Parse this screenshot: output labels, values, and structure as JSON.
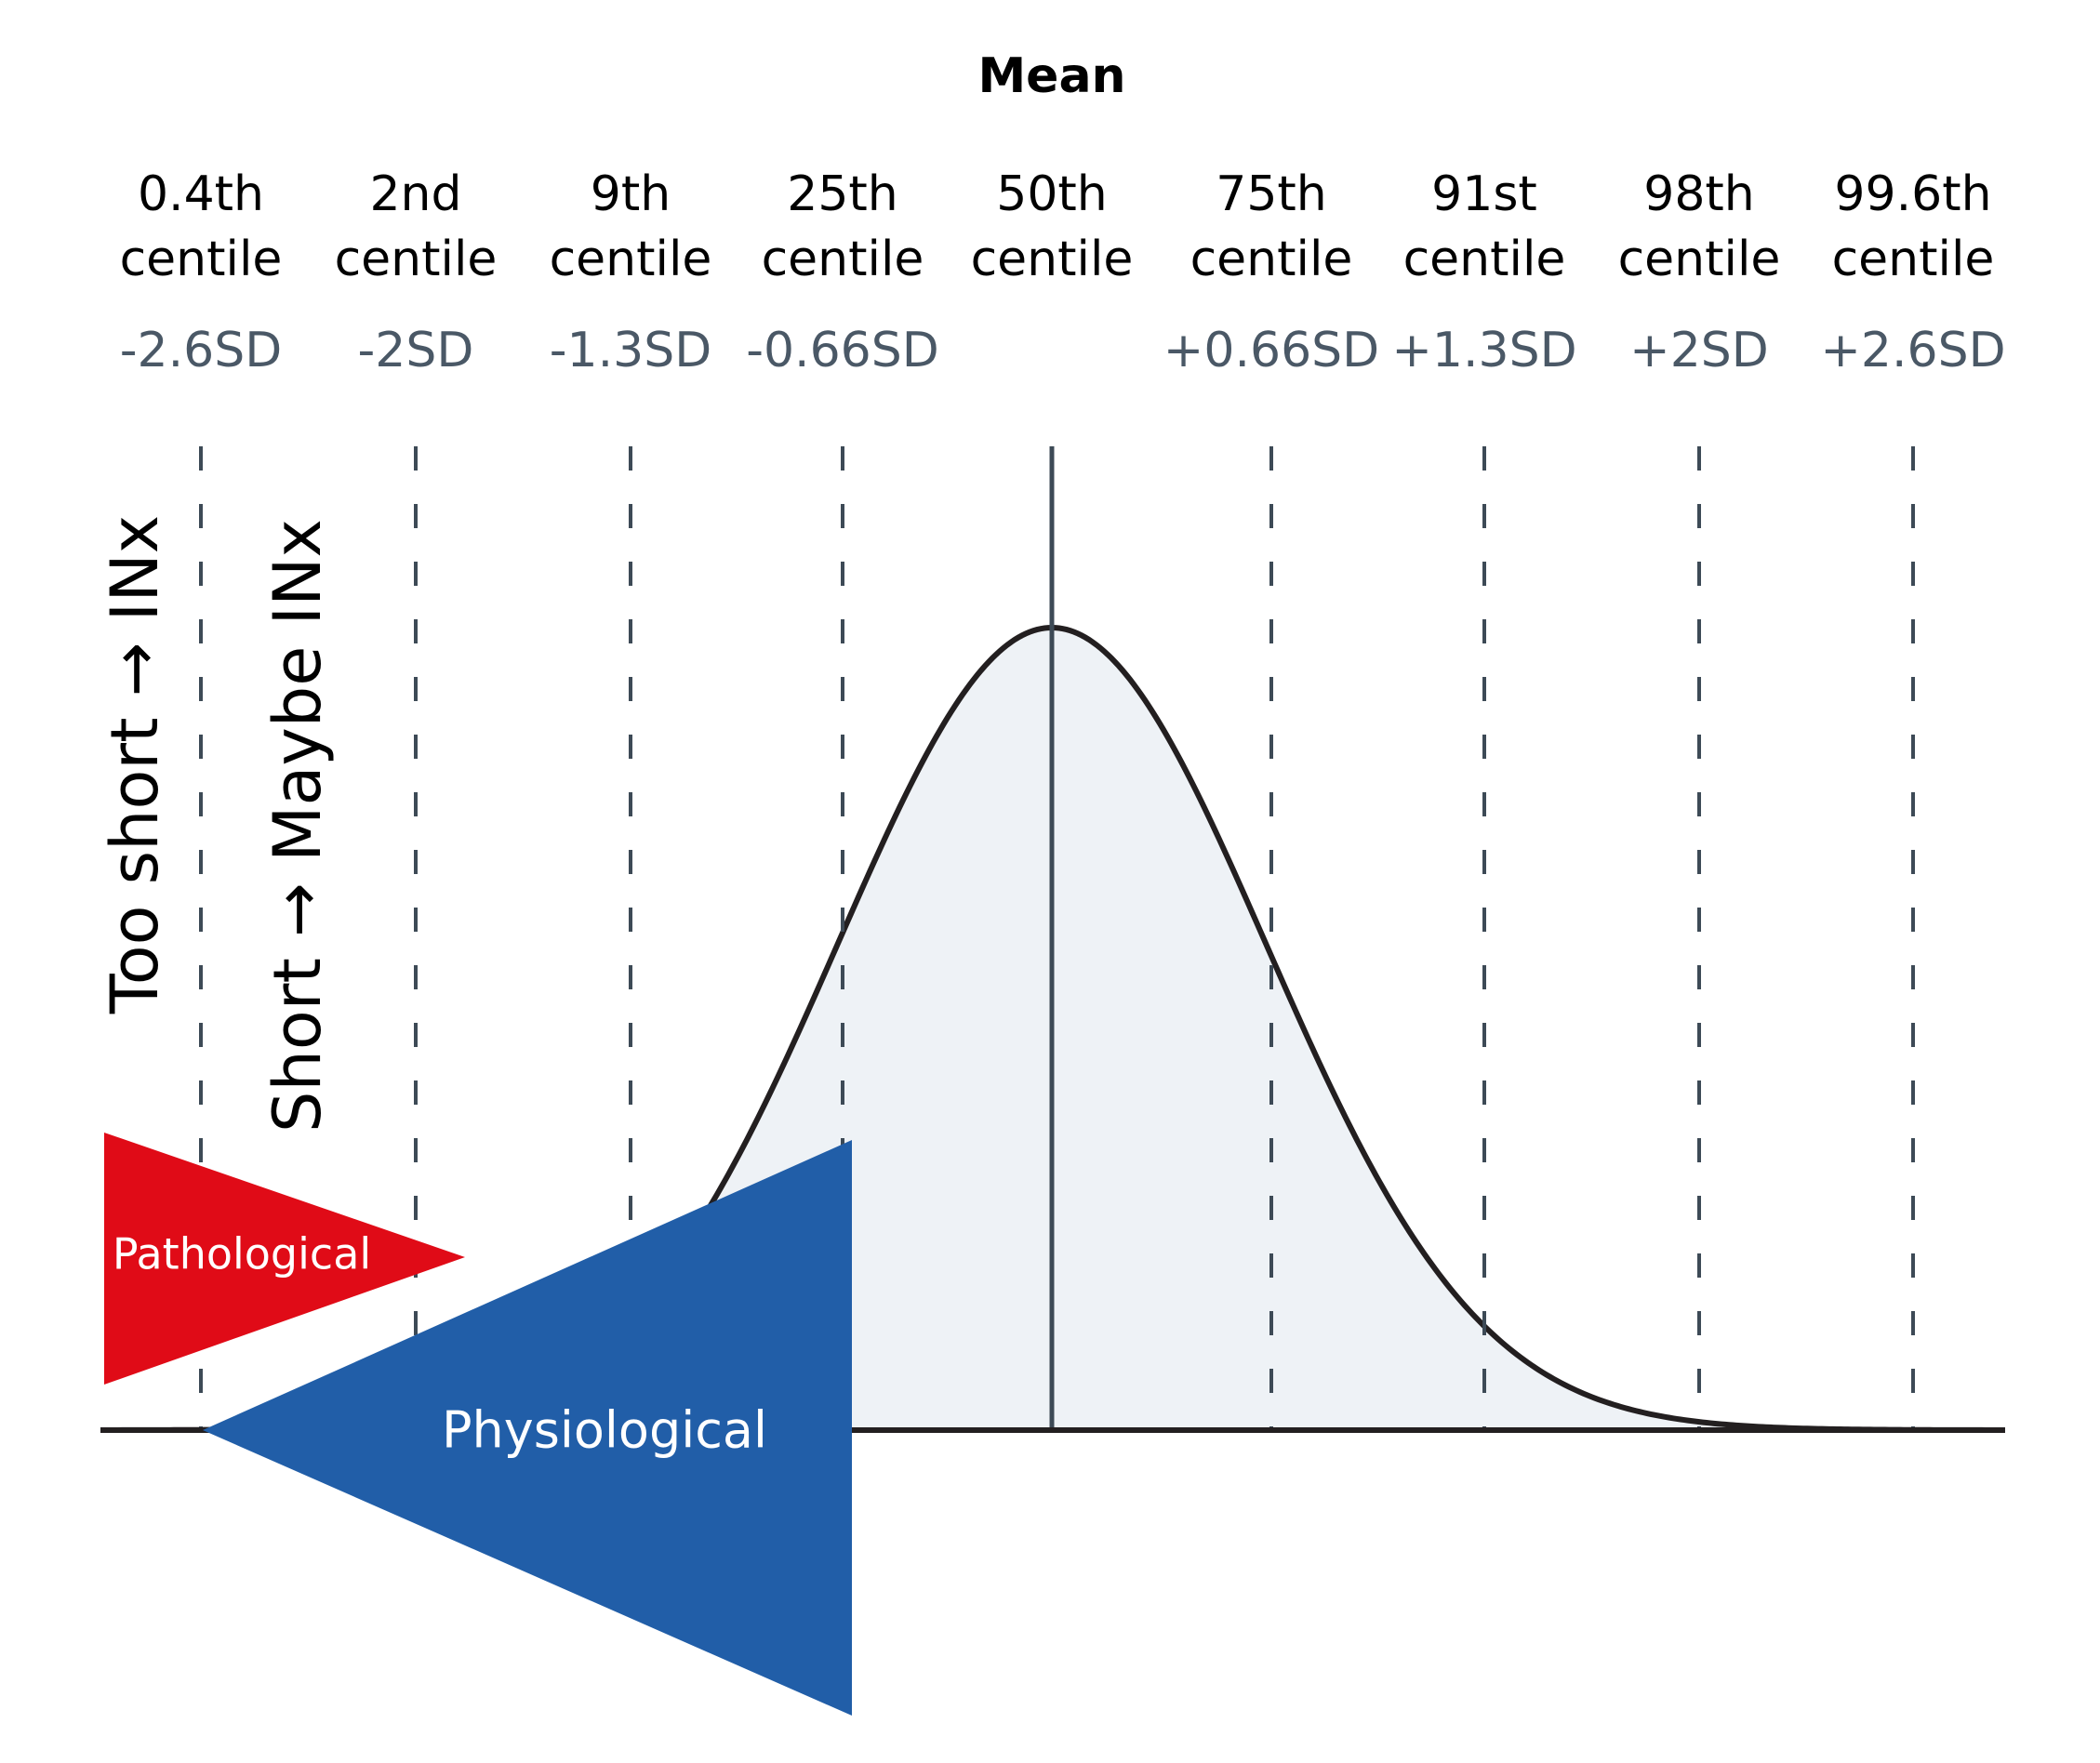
{
  "mean_label": "Mean",
  "centiles": [
    {
      "line1": "0.4th",
      "line2": "centile",
      "sd": "-2.6SD"
    },
    {
      "line1": "2nd",
      "line2": "centile",
      "sd": "-2SD"
    },
    {
      "line1": "9th",
      "line2": "centile",
      "sd": "-1.3SD"
    },
    {
      "line1": "25th",
      "line2": "centile",
      "sd": "-0.66SD"
    },
    {
      "line1": "50th",
      "line2": "centile",
      "sd": ""
    },
    {
      "line1": "75th",
      "line2": "centile",
      "sd": "+0.66SD"
    },
    {
      "line1": "91st",
      "line2": "centile",
      "sd": "+1.3SD"
    },
    {
      "line1": "98th",
      "line2": "centile",
      "sd": "+2SD"
    },
    {
      "line1": "99.6th",
      "line2": "centile",
      "sd": "+2.6SD"
    }
  ],
  "vertical_labels": {
    "too_short": "Too short → INx",
    "short": "Short → Maybe INx"
  },
  "wedges": {
    "pathological": "Pathological",
    "physiological": "Physiological"
  },
  "colors": {
    "curve_fill": "#eef2f6",
    "curve_stroke": "#231f20",
    "guide_line": "#3d4a56",
    "sd_text": "#4a5866",
    "pathological": "#e00b17",
    "physiological": "#215ea8"
  }
}
